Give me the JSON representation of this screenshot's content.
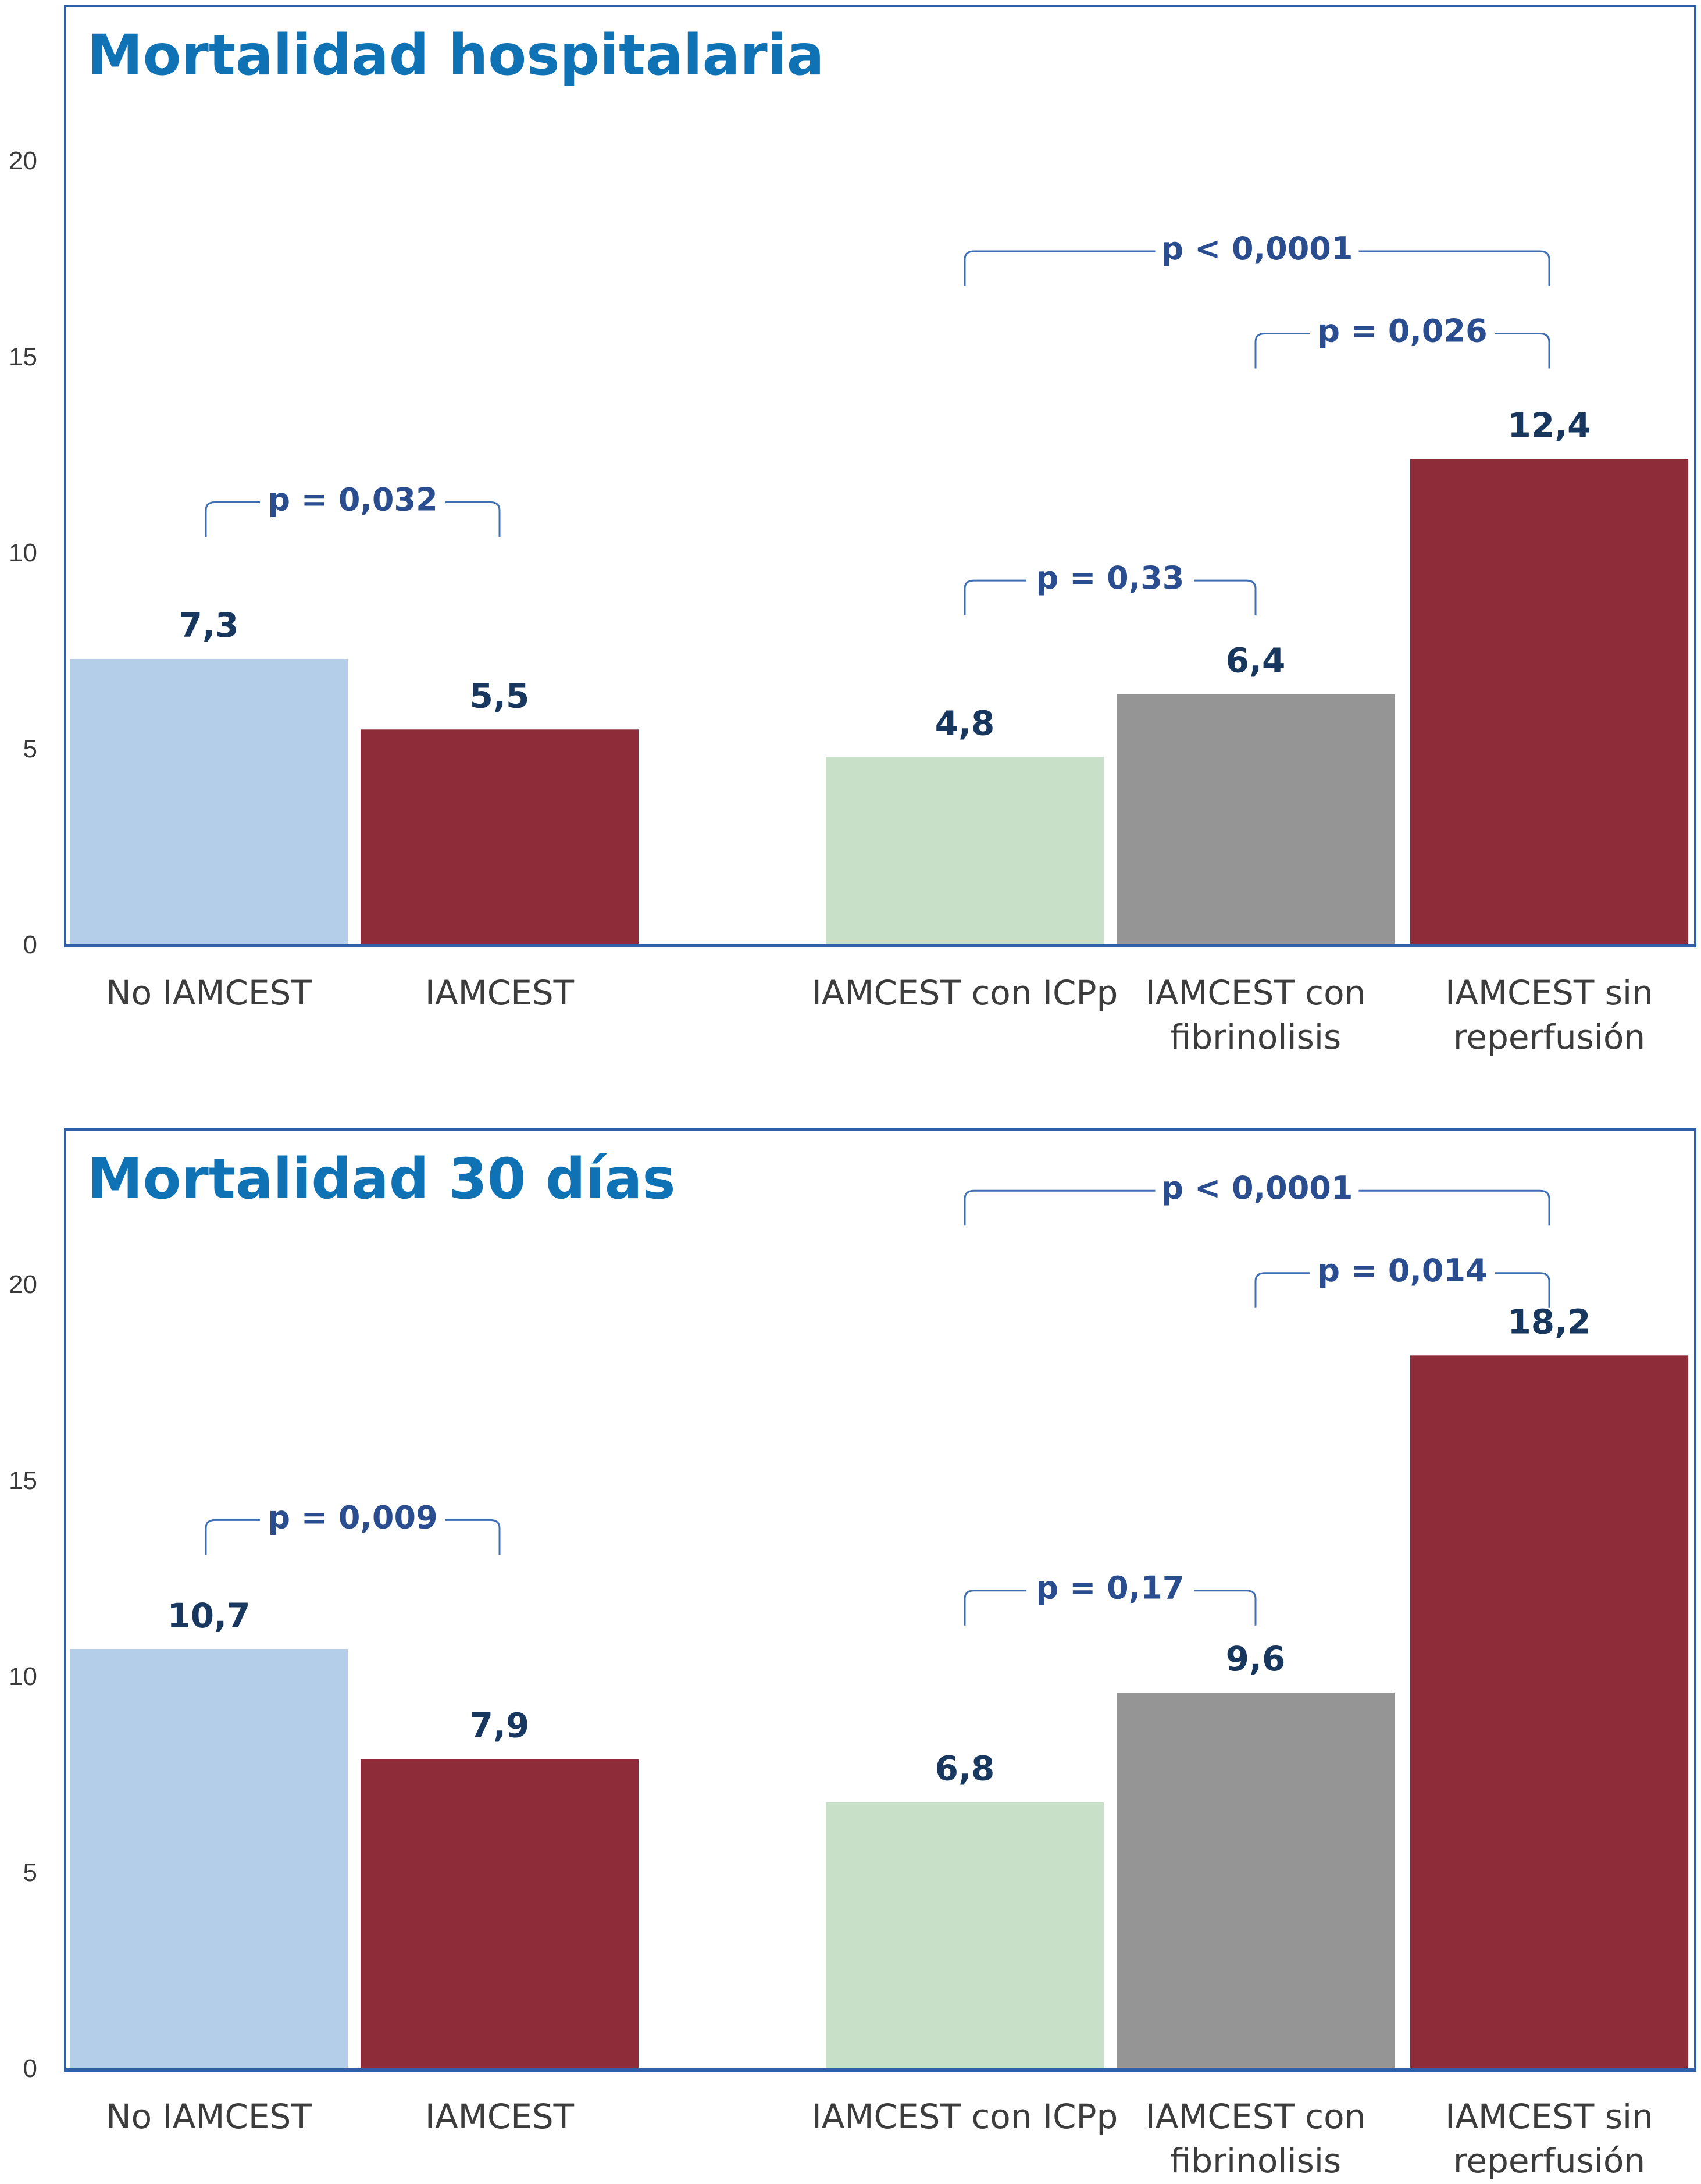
{
  "chart_data": [
    {
      "type": "bar",
      "title": "Mortalidad hospitalaria",
      "categories": [
        [
          "No IAMCEST"
        ],
        [
          "IAMCEST"
        ],
        [
          "IAMCEST con ICPp"
        ],
        [
          "IAMCEST con",
          "fibrinolisis"
        ],
        [
          "IAMCEST sin",
          "reperfusión"
        ]
      ],
      "values": [
        7.3,
        5.5,
        4.8,
        6.4,
        12.4
      ],
      "value_labels": [
        "7,3",
        "5,5",
        "4,8",
        "6,4",
        "12,4"
      ],
      "yticks": [
        "0",
        "5",
        "10",
        "15",
        "20"
      ],
      "ylim": [
        0,
        23.5
      ],
      "bar_colors": [
        "#b4cde8",
        "#8e2c3a",
        "#c9e0c8",
        "#969595",
        "#8e2c3a"
      ],
      "comparisons": [
        {
          "from": 0,
          "to": 1,
          "label": "p = 0,032",
          "level": 11.3
        },
        {
          "from": 2,
          "to": 3,
          "label": "p = 0,33",
          "level": 9.3
        },
        {
          "from": 3,
          "to": 4,
          "label": "p = 0,026",
          "level": 15.6
        },
        {
          "from": 2,
          "to": 4,
          "label": "p < 0,0001",
          "level": 17.7
        }
      ]
    },
    {
      "type": "bar",
      "title": "Mortalidad 30 días",
      "categories": [
        [
          "No IAMCEST"
        ],
        [
          "IAMCEST"
        ],
        [
          "IAMCEST con ICPp"
        ],
        [
          "IAMCEST con",
          "fibrinolisis"
        ],
        [
          "IAMCEST sin",
          "reperfusión"
        ]
      ],
      "values": [
        10.7,
        7.9,
        6.8,
        9.6,
        18.2
      ],
      "value_labels": [
        "10,7",
        "7,9",
        "6,8",
        "9,6",
        "18,2"
      ],
      "yticks": [
        "0",
        "5",
        "10",
        "15",
        "20"
      ],
      "ylim": [
        0,
        23.5
      ],
      "bar_colors": [
        "#b4cde8",
        "#8e2c3a",
        "#c9e0c8",
        "#969595",
        "#8e2c3a"
      ],
      "comparisons": [
        {
          "from": 0,
          "to": 1,
          "label": "p = 0,009",
          "level": 14.0
        },
        {
          "from": 2,
          "to": 3,
          "label": "p = 0,17",
          "level": 12.2
        },
        {
          "from": 3,
          "to": 4,
          "label": "p = 0,014",
          "level": 20.3
        },
        {
          "from": 2,
          "to": 4,
          "label": "p < 0,0001",
          "level": 22.4
        }
      ]
    }
  ]
}
